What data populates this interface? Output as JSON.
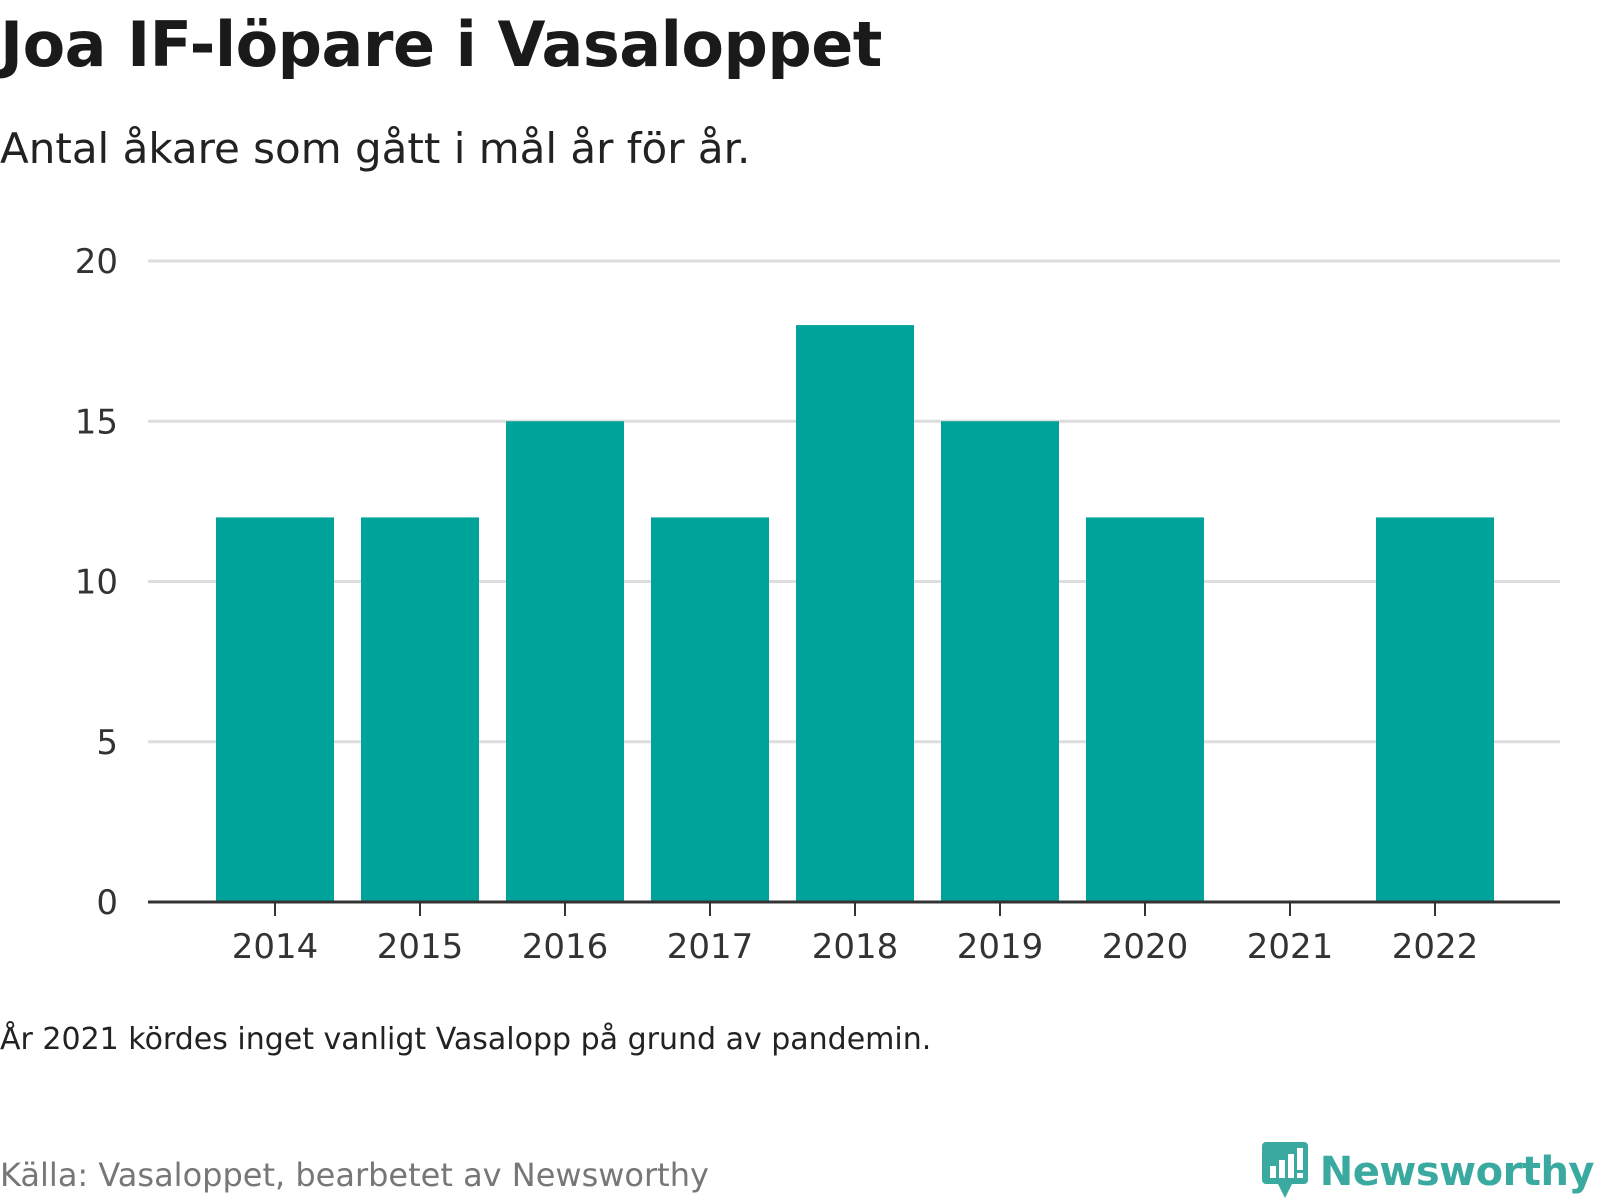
{
  "title": "Joa IF-löpare i Vasaloppet",
  "subtitle": "Antal åkare som gått i mål år för år.",
  "note": "År 2021 kördes inget vanligt Vasalopp på grund av pandemin.",
  "source": "Källa: Vasaloppet, bearbetet av Newsworthy",
  "brand": {
    "name": "Newsworthy",
    "icon": "newsworthy-logo-icon",
    "color": "#3aa99f"
  },
  "colors": {
    "bar": "#00a39a",
    "grid": "#dddddd",
    "axis": "#333333"
  },
  "chart_data": {
    "type": "bar",
    "categories": [
      "2014",
      "2015",
      "2016",
      "2017",
      "2018",
      "2019",
      "2020",
      "2021",
      "2022"
    ],
    "values": [
      12,
      12,
      15,
      12,
      18,
      15,
      12,
      0,
      12
    ],
    "yticks": [
      0,
      5,
      10,
      15,
      20
    ],
    "ylim": [
      0,
      20
    ],
    "grid": true,
    "legend": "none"
  }
}
